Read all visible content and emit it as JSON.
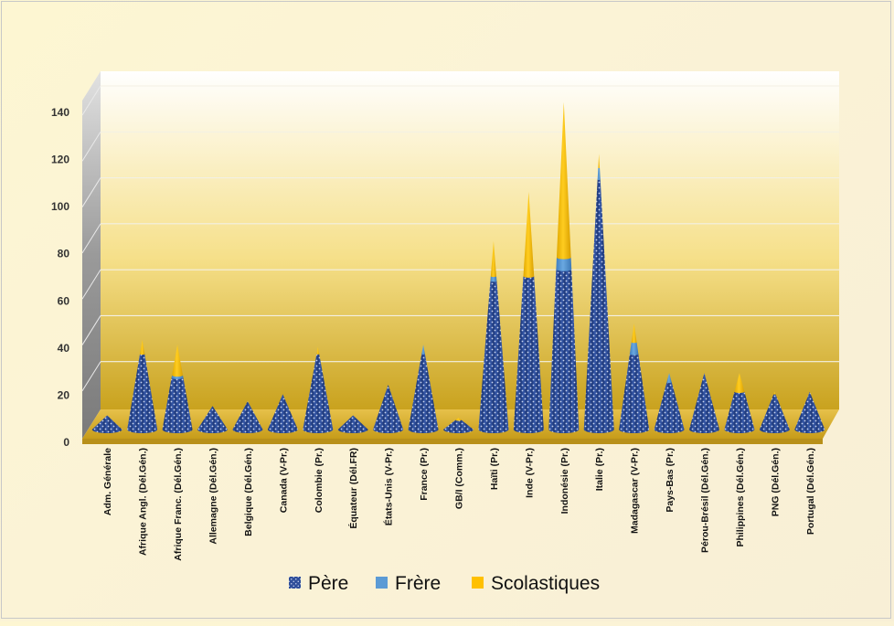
{
  "chart_data": {
    "type": "bar",
    "title": "",
    "xlabel": "",
    "ylabel": "",
    "ylim": [
      0,
      140
    ],
    "yticks": [
      0,
      20,
      40,
      60,
      80,
      100,
      120,
      140
    ],
    "grid": true,
    "stacked": true,
    "shape": "cone",
    "legend_position": "bottom",
    "categories": [
      "Adm. Générale",
      "Afrique Angl. (Dél.Gén.)",
      "Afrique Franc. (Dél.Gén.)",
      "Allemagne (Dél.Gén.)",
      "Belgique (Dél.Gén.)",
      "Canada (V-Pr.)",
      "Colombie (Pr.)",
      "Équateur (Dél.FR)",
      "États-Unis (V-Pr.)",
      "France (Pr.)",
      "GB/I (Comm.)",
      "Haïti (Pr.)",
      "Inde (V-Pr.)",
      "Indonésie (Pr.)",
      "Italie (Pr.)",
      "Madagascar (V-Pr.)",
      "Pays-Bas (Pr.)",
      "Pérou-Brésil (Dél.Gén.)",
      "Philippines (Dél.Gén.)",
      "PNG (Dél.Gén.)",
      "Portugal (Dél.Gén.)"
    ],
    "series": [
      {
        "name": "Père",
        "color": "#2f4f9a",
        "values": [
          6,
          32,
          22,
          10,
          12,
          15,
          32,
          6,
          19,
          32,
          4,
          63,
          65,
          68,
          106,
          32,
          20,
          24,
          16,
          15,
          16
        ]
      },
      {
        "name": "Frère",
        "color": "#5b9bd5",
        "values": [
          0,
          0,
          1,
          0,
          0,
          0,
          0,
          0,
          0,
          4,
          0,
          2,
          0,
          5,
          5,
          5,
          4,
          0,
          0,
          0,
          0
        ]
      },
      {
        "name": "Scolastiques",
        "color": "#ffc000",
        "values": [
          0,
          6,
          13,
          0,
          0,
          0,
          3,
          0,
          0,
          0,
          1,
          15,
          36,
          66,
          6,
          8,
          0,
          0,
          8,
          1,
          0
        ]
      }
    ]
  }
}
